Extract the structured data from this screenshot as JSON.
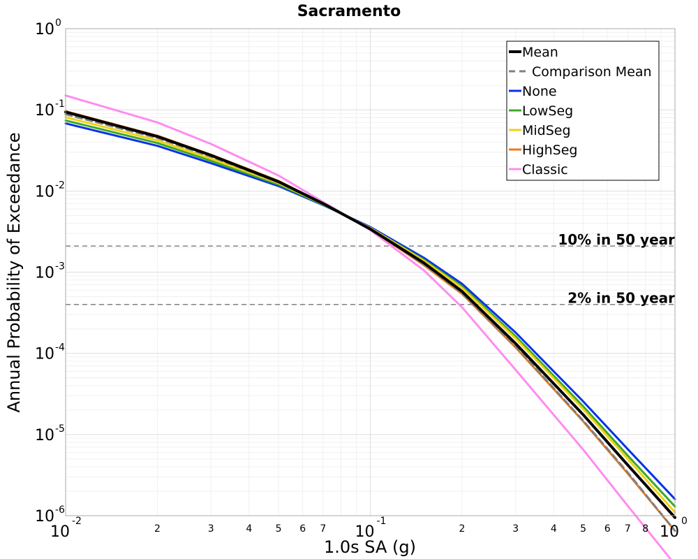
{
  "chart_data": {
    "type": "line",
    "title": "Sacramento",
    "xlabel": "1.0s SA (g)",
    "ylabel": "Annual Probability of Exceedance",
    "xscale": "log",
    "yscale": "log",
    "xlim": [
      0.01,
      1.0
    ],
    "ylim": [
      1e-06,
      1.0
    ],
    "grid": true,
    "legend_position": "top-right",
    "x_major_ticks": [
      {
        "value": 0.01,
        "base": "10",
        "exp": "-2"
      },
      {
        "value": 0.1,
        "base": "10",
        "exp": "-1"
      },
      {
        "value": 1.0,
        "base": "10",
        "exp": "0"
      }
    ],
    "x_minor_tick_labels": [
      "2",
      "3",
      "4",
      "5",
      "6",
      "7",
      "2",
      "3",
      "4",
      "5",
      "6",
      "7",
      "8"
    ],
    "y_major_ticks": [
      {
        "value": 1.0,
        "base": "10",
        "exp": "0"
      },
      {
        "value": 0.1,
        "base": "10",
        "exp": "-1"
      },
      {
        "value": 0.01,
        "base": "10",
        "exp": "-2"
      },
      {
        "value": 0.001,
        "base": "10",
        "exp": "-3"
      },
      {
        "value": 0.0001,
        "base": "10",
        "exp": "-4"
      },
      {
        "value": 1e-05,
        "base": "10",
        "exp": "-5"
      },
      {
        "value": 1e-06,
        "base": "10",
        "exp": "-6"
      }
    ],
    "reference_lines": [
      {
        "y": 0.0021,
        "label": "10% in 50 year",
        "color": "#808080"
      },
      {
        "y": 0.0004,
        "label": "2% in 50 year",
        "color": "#808080"
      }
    ],
    "x": [
      0.01,
      0.02,
      0.03,
      0.05,
      0.07,
      0.1,
      0.15,
      0.2,
      0.3,
      0.5,
      0.7,
      1.0
    ],
    "series": [
      {
        "name": "Classic",
        "color": "#ff8cf0",
        "dash": false,
        "values": [
          0.15,
          0.07,
          0.038,
          0.0155,
          0.0073,
          0.0033,
          0.00105,
          0.00037,
          6.25e-05,
          6.5e-06,
          1.32e-06,
          2.5e-07
        ]
      },
      {
        "name": "None",
        "color": "#0a32e6",
        "dash": false,
        "values": [
          0.068,
          0.036,
          0.022,
          0.0115,
          0.0067,
          0.0036,
          0.0015,
          0.00072,
          0.00018,
          2.55e-05,
          6.6e-06,
          1.6e-06
        ]
      },
      {
        "name": "LowSeg",
        "color": "#3caa28",
        "dash": false,
        "values": [
          0.074,
          0.039,
          0.0235,
          0.012,
          0.0068,
          0.0035,
          0.00142,
          0.00067,
          0.000162,
          2.22e-05,
          5.5e-06,
          1.3e-06
        ]
      },
      {
        "name": "MidSeg",
        "color": "#f0d214",
        "dash": false,
        "values": [
          0.081,
          0.042,
          0.025,
          0.0125,
          0.0069,
          0.0035,
          0.00138,
          0.00064,
          0.000152,
          2.05e-05,
          5e-06,
          1.1e-06
        ]
      },
      {
        "name": "HighSeg",
        "color": "#f07814",
        "dash": false,
        "values": [
          0.096,
          0.048,
          0.028,
          0.0133,
          0.007,
          0.0034,
          0.00122,
          0.00054,
          0.000118,
          1.45e-05,
          3.3e-06,
          6.5e-07
        ]
      },
      {
        "name": "Comparison Mean",
        "color": "#808080",
        "dash": true,
        "values": [
          0.088,
          0.045,
          0.0265,
          0.0128,
          0.0069,
          0.0034,
          0.00125,
          0.00055,
          0.000122,
          1.48e-05,
          3.4e-06,
          6.5e-07
        ]
      },
      {
        "name": "Mean",
        "color": "#000000",
        "dash": false,
        "values": [
          0.094,
          0.047,
          0.0275,
          0.013,
          0.007,
          0.0034,
          0.0013,
          0.00058,
          0.000132,
          1.75e-05,
          4.2e-06,
          9.5e-07
        ]
      }
    ],
    "legend_order": [
      "Mean",
      "Comparison Mean",
      "None",
      "LowSeg",
      "MidSeg",
      "HighSeg",
      "Classic"
    ]
  }
}
